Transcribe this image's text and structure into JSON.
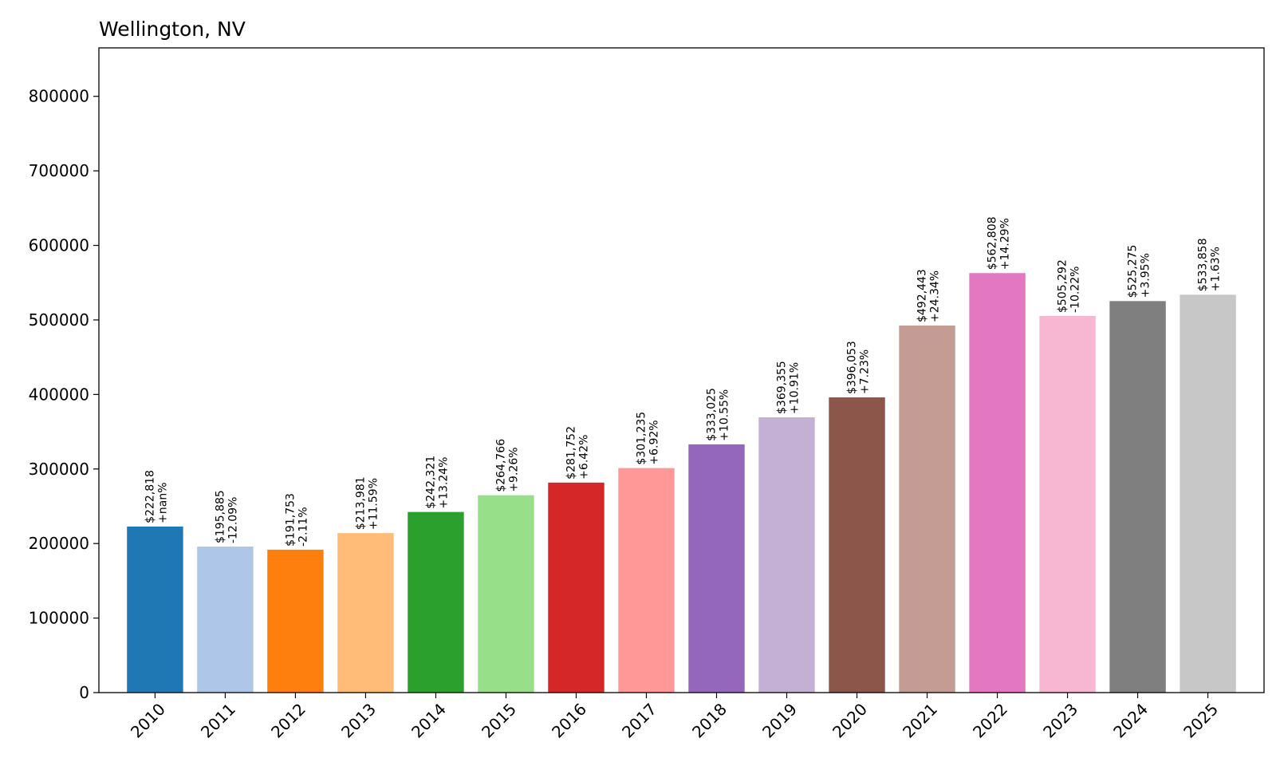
{
  "chart_data": {
    "type": "bar",
    "title": "Wellington, NV",
    "xlabel": "",
    "ylabel": "",
    "ylim": [
      0,
      865000
    ],
    "yticks": [
      0,
      100000,
      200000,
      300000,
      400000,
      500000,
      600000,
      700000,
      800000
    ],
    "ytick_labels": [
      "0",
      "100000",
      "200000",
      "300000",
      "400000",
      "500000",
      "600000",
      "700000",
      "800000"
    ],
    "categories": [
      "2010",
      "2011",
      "2012",
      "2013",
      "2014",
      "2015",
      "2016",
      "2017",
      "2018",
      "2019",
      "2020",
      "2021",
      "2022",
      "2023",
      "2024",
      "2025"
    ],
    "values": [
      222818,
      195885,
      191753,
      213981,
      242321,
      264766,
      281752,
      301235,
      333025,
      369355,
      396053,
      492443,
      562808,
      505292,
      525275,
      533858
    ],
    "value_labels": [
      "$222,818",
      "$195,885",
      "$191,753",
      "$213,981",
      "$242,321",
      "$264,766",
      "$281,752",
      "$301,235",
      "$333,025",
      "$369,355",
      "$396,053",
      "$492,443",
      "$562,808",
      "$505,292",
      "$525,275",
      "$533,858"
    ],
    "change_labels": [
      "+nan%",
      "-12.09%",
      "-2.11%",
      "+11.59%",
      "+13.24%",
      "+9.26%",
      "+6.42%",
      "+6.92%",
      "+10.55%",
      "+10.91%",
      "+7.23%",
      "+24.34%",
      "+14.29%",
      "-10.22%",
      "+3.95%",
      "+1.63%"
    ],
    "colors": [
      "#1f77b4",
      "#aec7e8",
      "#ff7f0e",
      "#ffbb78",
      "#2ca02c",
      "#98df8a",
      "#d62728",
      "#ff9896",
      "#9467bd",
      "#c5b0d5",
      "#8c564b",
      "#c49c94",
      "#e377c2",
      "#f7b6d2",
      "#7f7f7f",
      "#c7c7c7"
    ],
    "grid": false,
    "legend": "none"
  }
}
